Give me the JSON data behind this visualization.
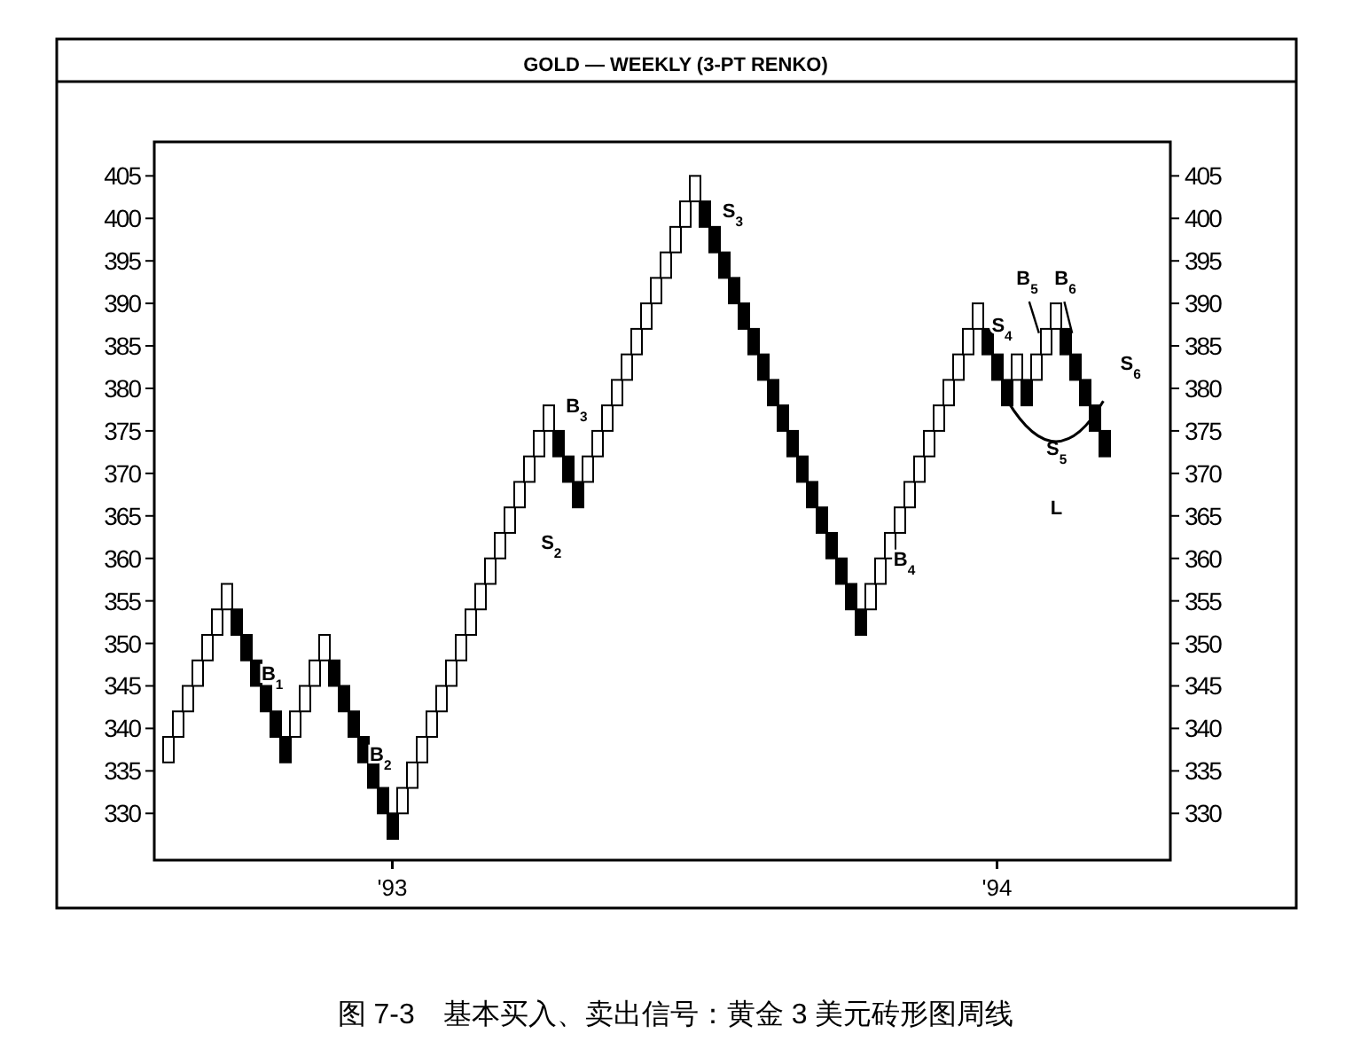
{
  "chart_data": {
    "type": "bar",
    "title": "GOLD — WEEKLY (3-PT RENKO)",
    "categories": [
      null,
      null,
      null,
      null,
      null,
      null,
      null,
      null,
      null,
      null,
      null,
      null,
      null,
      null,
      null,
      null,
      null,
      null,
      null,
      null,
      null,
      null,
      null,
      "'93",
      null,
      null,
      null,
      null,
      null,
      null,
      null,
      null,
      null,
      null,
      null,
      null,
      null,
      null,
      null,
      null,
      null,
      null,
      null,
      null,
      null,
      null,
      null,
      null,
      null,
      null,
      null,
      null,
      null,
      null,
      null,
      null,
      null,
      null,
      null,
      null,
      null,
      null,
      null,
      null,
      null,
      null,
      null,
      null,
      null,
      null,
      null,
      null,
      null,
      null,
      null,
      null,
      null,
      null,
      null,
      null,
      null,
      null,
      null,
      null,
      null,
      "'94",
      null,
      null,
      null,
      null,
      null,
      null,
      null,
      null,
      null,
      null,
      null
    ],
    "base": [
      336,
      339,
      342,
      345,
      348,
      351,
      354,
      354,
      351,
      348,
      345,
      342,
      339,
      339,
      342,
      345,
      348,
      348,
      345,
      342,
      339,
      336,
      333,
      330,
      330,
      333,
      336,
      339,
      342,
      345,
      348,
      351,
      354,
      357,
      360,
      363,
      366,
      369,
      372,
      375,
      375,
      372,
      369,
      369,
      372,
      375,
      378,
      381,
      384,
      387,
      390,
      393,
      396,
      399,
      402,
      402,
      399,
      396,
      393,
      390,
      387,
      384,
      381,
      378,
      375,
      372,
      369,
      366,
      363,
      360,
      357,
      354,
      354,
      357,
      360,
      363,
      366,
      369,
      372,
      375,
      378,
      381,
      384,
      387,
      387,
      384,
      381,
      381,
      381,
      381,
      384,
      387,
      387,
      384,
      381,
      378,
      375
    ],
    "values": [
      3,
      3,
      3,
      3,
      3,
      3,
      3,
      -3,
      -3,
      -3,
      -3,
      -3,
      -3,
      3,
      3,
      3,
      3,
      -3,
      -3,
      -3,
      -3,
      -3,
      -3,
      -3,
      3,
      3,
      3,
      3,
      3,
      3,
      3,
      3,
      3,
      3,
      3,
      3,
      3,
      3,
      3,
      3,
      -3,
      -3,
      -3,
      3,
      3,
      3,
      3,
      3,
      3,
      3,
      3,
      3,
      3,
      3,
      3,
      -3,
      -3,
      -3,
      -3,
      -3,
      -3,
      -3,
      -3,
      -3,
      -3,
      -3,
      -3,
      -3,
      -3,
      -3,
      -3,
      -3,
      3,
      3,
      3,
      3,
      3,
      3,
      3,
      3,
      3,
      3,
      3,
      3,
      -3,
      -3,
      -3,
      3,
      -3,
      3,
      3,
      3,
      -3,
      -3,
      -3,
      -3,
      -3
    ],
    "colors": [
      "#ffffff",
      "#ffffff",
      "#ffffff",
      "#ffffff",
      "#ffffff",
      "#ffffff",
      "#ffffff",
      "#000000",
      "#000000",
      "#000000",
      "#000000",
      "#000000",
      "#000000",
      "#ffffff",
      "#ffffff",
      "#ffffff",
      "#ffffff",
      "#000000",
      "#000000",
      "#000000",
      "#000000",
      "#000000",
      "#000000",
      "#000000",
      "#ffffff",
      "#ffffff",
      "#ffffff",
      "#ffffff",
      "#ffffff",
      "#ffffff",
      "#ffffff",
      "#ffffff",
      "#ffffff",
      "#ffffff",
      "#ffffff",
      "#ffffff",
      "#ffffff",
      "#ffffff",
      "#ffffff",
      "#ffffff",
      "#000000",
      "#000000",
      "#000000",
      "#ffffff",
      "#ffffff",
      "#ffffff",
      "#ffffff",
      "#ffffff",
      "#ffffff",
      "#ffffff",
      "#ffffff",
      "#ffffff",
      "#ffffff",
      "#ffffff",
      "#ffffff",
      "#000000",
      "#000000",
      "#000000",
      "#000000",
      "#000000",
      "#000000",
      "#000000",
      "#000000",
      "#000000",
      "#000000",
      "#000000",
      "#000000",
      "#000000",
      "#000000",
      "#000000",
      "#000000",
      "#000000",
      "#ffffff",
      "#ffffff",
      "#ffffff",
      "#ffffff",
      "#ffffff",
      "#ffffff",
      "#ffffff",
      "#ffffff",
      "#ffffff",
      "#ffffff",
      "#ffffff",
      "#ffffff",
      "#000000",
      "#000000",
      "#000000",
      "#ffffff",
      "#000000",
      "#ffffff",
      "#ffffff",
      "#ffffff",
      "#000000",
      "#000000",
      "#000000",
      "#000000",
      "#000000"
    ],
    "ylim": [
      324.5,
      409
    ],
    "yticks": [
      330,
      335,
      340,
      345,
      350,
      355,
      360,
      365,
      370,
      375,
      380,
      385,
      390,
      395,
      400,
      405
    ],
    "y2lim": [
      324.5,
      409
    ],
    "y2ticks": [
      330,
      335,
      340,
      345,
      350,
      355,
      360,
      365,
      370,
      375,
      380,
      385,
      390,
      395,
      400,
      405
    ],
    "grid": false,
    "annotations": [
      "B$_{1}$",
      "B$_{2}$",
      "S$_{2}$",
      "B$_{3}$",
      "S$_{3}$",
      "B$_{4}$",
      "S$_{4}$",
      "B$_{5}$",
      "B$_{6}$",
      "S$_{5}$",
      "S$_{6}$",
      "L",
      "图 7-3　基本买入、卖出信号：黄金 3 美元砖形图周线"
    ]
  }
}
